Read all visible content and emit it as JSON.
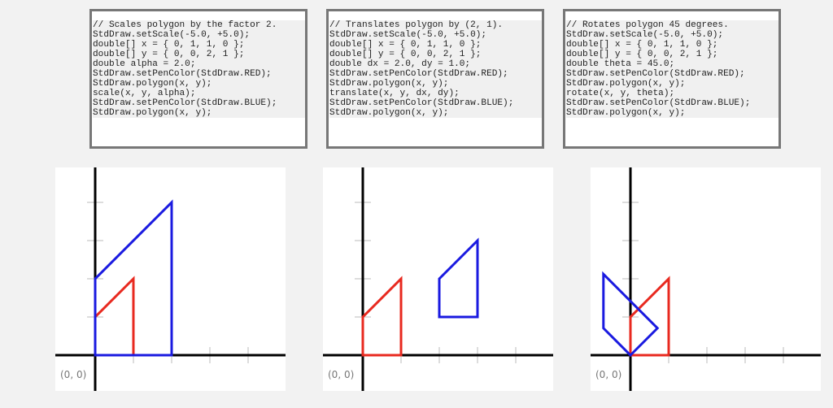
{
  "panels": [
    {
      "code": [
        "// Scales polygon by the factor 2.",
        "StdDraw.setScale(-5.0, +5.0);",
        "double[] x = { 0, 1, 1, 0 };",
        "double[] y = { 0, 0, 2, 1 };",
        "double alpha = 2.0;",
        "StdDraw.setPenColor(StdDraw.RED);",
        "StdDraw.polygon(x, y);",
        "scale(x, y, alpha);",
        "StdDraw.setPenColor(StdDraw.BLUE);",
        "StdDraw.polygon(x, y);"
      ],
      "origin_label": "(0, 0)",
      "polygons": [
        {
          "color": "#e8291f",
          "points": [
            [
              0,
              0
            ],
            [
              1,
              0
            ],
            [
              1,
              2
            ],
            [
              0,
              1
            ]
          ]
        },
        {
          "color": "#1a1ae0",
          "points": [
            [
              0,
              0
            ],
            [
              2,
              0
            ],
            [
              2,
              4
            ],
            [
              0,
              2
            ]
          ]
        }
      ]
    },
    {
      "code": [
        "// Translates polygon by (2, 1).",
        "StdDraw.setScale(-5.0, +5.0);",
        "double[] x = { 0, 1, 1, 0 };",
        "double[] y = { 0, 0, 2, 1 };",
        "double dx = 2.0, dy = 1.0;",
        "StdDraw.setPenColor(StdDraw.RED);",
        "StdDraw.polygon(x, y);",
        "translate(x, y, dx, dy);",
        "StdDraw.setPenColor(StdDraw.BLUE);",
        "StdDraw.polygon(x, y);"
      ],
      "origin_label": "(0, 0)",
      "polygons": [
        {
          "color": "#e8291f",
          "points": [
            [
              0,
              0
            ],
            [
              1,
              0
            ],
            [
              1,
              2
            ],
            [
              0,
              1
            ]
          ]
        },
        {
          "color": "#1a1ae0",
          "points": [
            [
              2,
              1
            ],
            [
              3,
              1
            ],
            [
              3,
              3
            ],
            [
              2,
              2
            ]
          ]
        }
      ]
    },
    {
      "code": [
        "// Rotates polygon 45 degrees.",
        "StdDraw.setScale(-5.0, +5.0);",
        "double[] x = { 0, 1, 1, 0 };",
        "double[] y = { 0, 0, 2, 1 };",
        "double theta = 45.0;",
        "StdDraw.setPenColor(StdDraw.RED);",
        "StdDraw.polygon(x, y);",
        "rotate(x, y, theta);",
        "StdDraw.setPenColor(StdDraw.BLUE);",
        "StdDraw.polygon(x, y);"
      ],
      "origin_label": "(0, 0)",
      "polygons": [
        {
          "color": "#e8291f",
          "points": [
            [
              0,
              0
            ],
            [
              1,
              0
            ],
            [
              1,
              2
            ],
            [
              0,
              1
            ]
          ]
        },
        {
          "color": "#1a1ae0",
          "points": [
            [
              0,
              0
            ],
            [
              0.7071,
              0.7071
            ],
            [
              -0.7071,
              2.1213
            ],
            [
              -0.7071,
              0.7071
            ]
          ]
        }
      ]
    }
  ]
}
